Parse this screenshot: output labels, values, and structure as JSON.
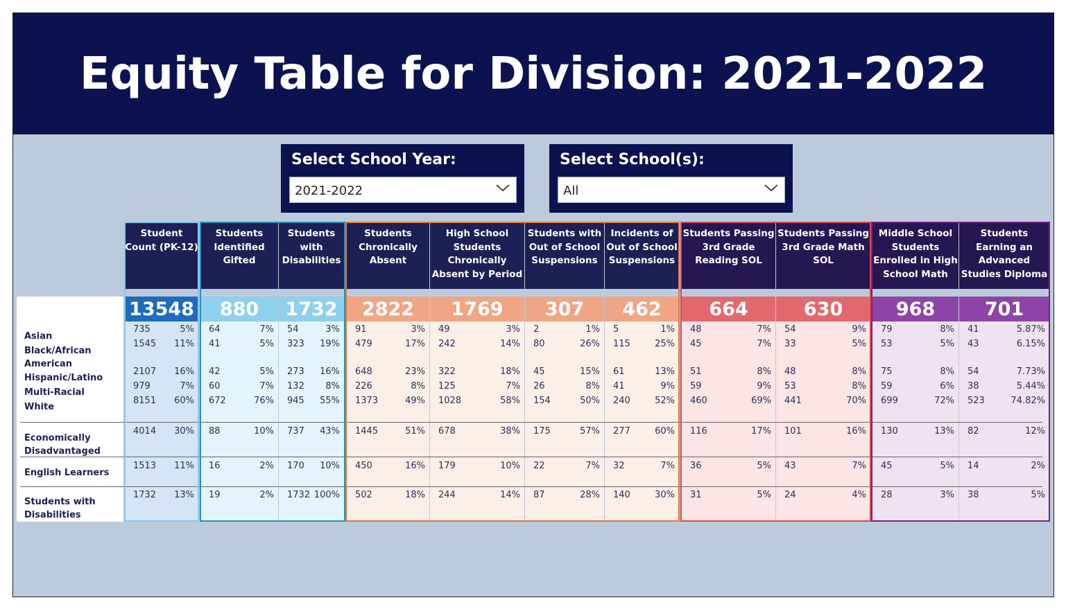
{
  "title": "Equity Table for Division: 2021-2022",
  "filters": {
    "school_year": {
      "label": "Select School Year:",
      "value": "2021-2022",
      "icon": "chevron-down-icon"
    },
    "schools": {
      "label": "Select School(s):",
      "value": "All",
      "icon": "chevron-down-icon"
    }
  },
  "row_labels": [
    "Asian",
    "Black/African American",
    "Hispanic/Latino",
    "Multi-Racial",
    "White",
    "Economically Disadvantaged",
    "English Learners",
    "Students with Disabilities"
  ],
  "columns": [
    {
      "header": "Student Count (PK-12)",
      "total": "13548",
      "counts": [
        "735",
        "1545",
        "2107",
        "979",
        "8151",
        "4014",
        "1513",
        "1732"
      ],
      "pcts": [
        "5%",
        "11%",
        "16%",
        "7%",
        "60%",
        "30%",
        "11%",
        "13%"
      ]
    },
    {
      "header": "Students Identified Gifted",
      "total": "880",
      "counts": [
        "64",
        "41",
        "42",
        "60",
        "672",
        "88",
        "16",
        "19"
      ],
      "pcts": [
        "7%",
        "5%",
        "5%",
        "7%",
        "76%",
        "10%",
        "2%",
        "2%"
      ]
    },
    {
      "header": "Students with Disabilities",
      "total": "1732",
      "counts": [
        "54",
        "323",
        "273",
        "132",
        "945",
        "737",
        "170",
        "1732"
      ],
      "pcts": [
        "3%",
        "19%",
        "16%",
        "8%",
        "55%",
        "43%",
        "10%",
        "100%"
      ]
    },
    {
      "header": "Students Chronically Absent",
      "total": "2822",
      "counts": [
        "91",
        "479",
        "648",
        "226",
        "1373",
        "1445",
        "450",
        "502"
      ],
      "pcts": [
        "3%",
        "17%",
        "23%",
        "8%",
        "49%",
        "51%",
        "16%",
        "18%"
      ]
    },
    {
      "header": "High School Students Chronically Absent by Period",
      "total": "1769",
      "counts": [
        "49",
        "242",
        "322",
        "125",
        "1028",
        "678",
        "179",
        "244"
      ],
      "pcts": [
        "3%",
        "14%",
        "18%",
        "7%",
        "58%",
        "38%",
        "10%",
        "14%"
      ]
    },
    {
      "header": "Students with Out of School Suspensions",
      "total": "307",
      "counts": [
        "2",
        "80",
        "45",
        "26",
        "154",
        "175",
        "22",
        "87"
      ],
      "pcts": [
        "1%",
        "26%",
        "15%",
        "8%",
        "50%",
        "57%",
        "7%",
        "28%"
      ]
    },
    {
      "header": "Incidents of Out of School Suspensions",
      "total": "462",
      "counts": [
        "5",
        "115",
        "61",
        "41",
        "240",
        "277",
        "32",
        "140"
      ],
      "pcts": [
        "1%",
        "25%",
        "13%",
        "9%",
        "52%",
        "60%",
        "7%",
        "30%"
      ]
    },
    {
      "header": "Students Passing 3rd Grade Reading SOL",
      "total": "664",
      "counts": [
        "48",
        "45",
        "51",
        "59",
        "460",
        "116",
        "36",
        "31"
      ],
      "pcts": [
        "7%",
        "7%",
        "8%",
        "9%",
        "69%",
        "17%",
        "5%",
        "5%"
      ]
    },
    {
      "header": "Students Passing 3rd Grade Math SOL",
      "total": "630",
      "counts": [
        "54",
        "33",
        "48",
        "53",
        "441",
        "101",
        "43",
        "24"
      ],
      "pcts": [
        "9%",
        "5%",
        "8%",
        "8%",
        "70%",
        "16%",
        "7%",
        "4%"
      ]
    },
    {
      "header": "Middle School Students Enrolled in High School Math",
      "total": "968",
      "counts": [
        "79",
        "53",
        "75",
        "59",
        "699",
        "130",
        "45",
        "28"
      ],
      "pcts": [
        "8%",
        "5%",
        "8%",
        "6%",
        "72%",
        "13%",
        "5%",
        "3%"
      ]
    },
    {
      "header": "Students Earning an Advanced Studies Diploma",
      "total": "701",
      "counts": [
        "41",
        "43",
        "54",
        "38",
        "523",
        "82",
        "14",
        "38"
      ],
      "pcts": [
        "5.87%",
        "6.15%",
        "7.73%",
        "5.44%",
        "74.82%",
        "12%",
        "2%",
        "5%"
      ]
    }
  ],
  "colors": {
    "banner": "#0b124f",
    "background": "#bccbdb",
    "total_blue": "#1e6bc0",
    "total_cyan": "#8fd0ec",
    "total_peach": "#f0a584",
    "total_red": "#e2686e",
    "total_purple": "#8e44a6"
  }
}
